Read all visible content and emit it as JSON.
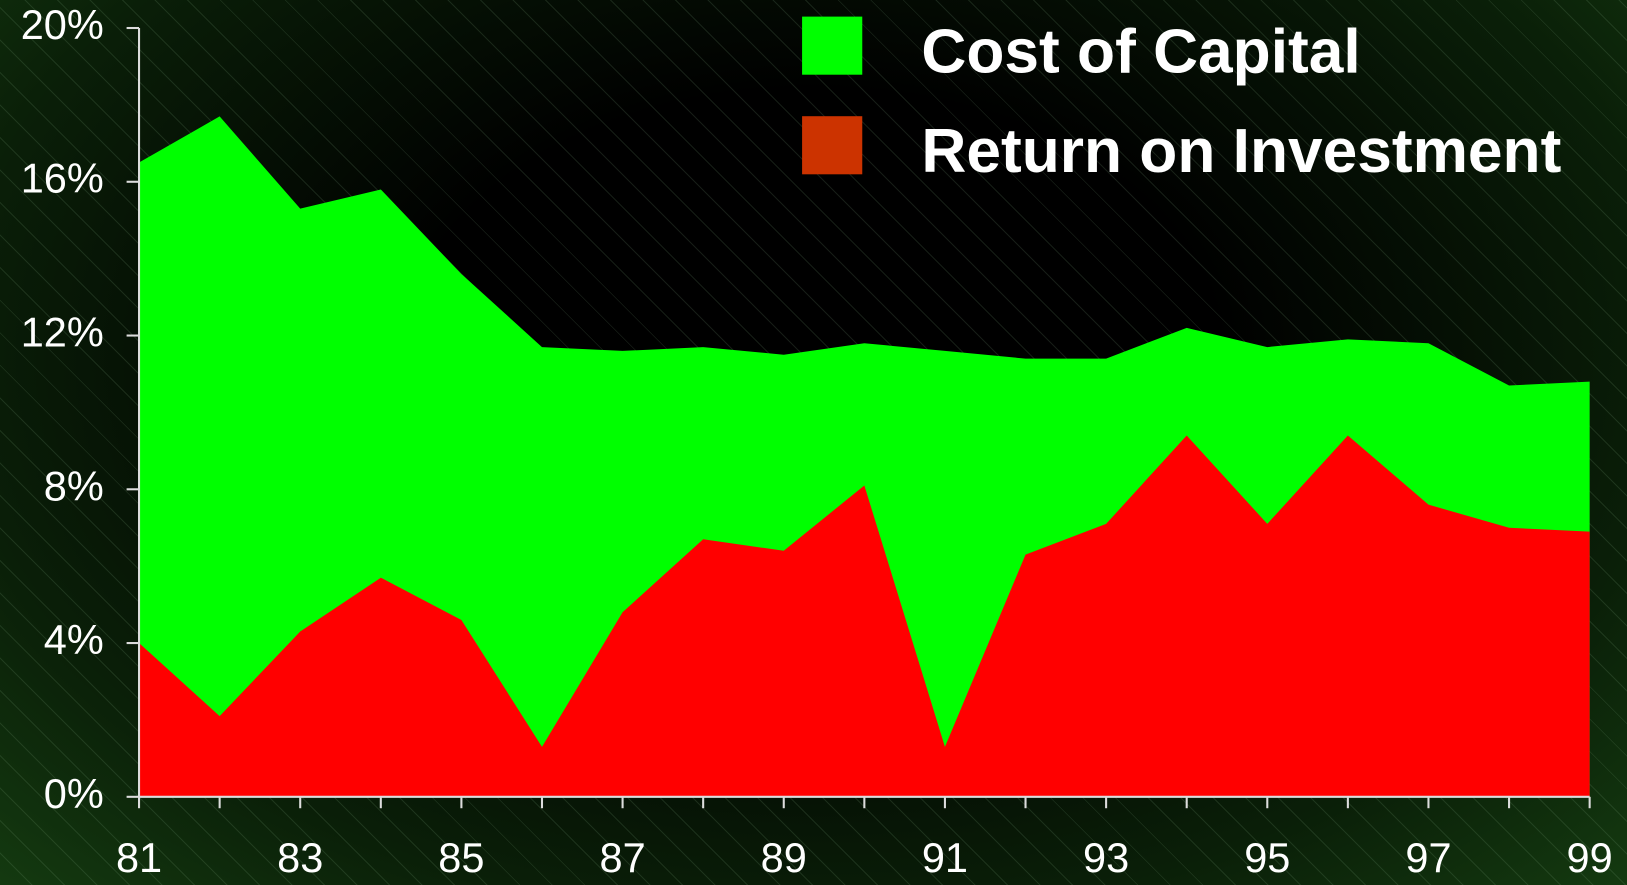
{
  "chart_data": {
    "type": "area",
    "categories": [
      "81",
      null,
      "83",
      null,
      "85",
      null,
      "87",
      null,
      "89",
      null,
      "91",
      null,
      "93",
      null,
      "95",
      null,
      "97",
      null,
      "99"
    ],
    "series": [
      {
        "name": "Cost of Capital",
        "color": "#00ff00",
        "legend_color": "#00ff00",
        "values": [
          16.5,
          17.7,
          15.3,
          15.8,
          13.6,
          11.7,
          11.6,
          11.7,
          11.5,
          11.8,
          11.6,
          11.4,
          11.4,
          12.2,
          11.7,
          11.9,
          11.8,
          10.7,
          10.8
        ]
      },
      {
        "name": "Return on Investment",
        "color": "#ff0000",
        "legend_color": "#cc3300",
        "values": [
          4.0,
          2.1,
          4.3,
          5.7,
          4.6,
          1.3,
          4.8,
          6.7,
          6.4,
          8.1,
          1.3,
          6.3,
          7.1,
          9.4,
          7.1,
          9.4,
          7.6,
          7.0,
          6.9
        ]
      }
    ],
    "ylim": [
      0,
      20
    ],
    "yticks": [
      {
        "value": 0,
        "label": "0%"
      },
      {
        "value": 4,
        "label": "4%"
      },
      {
        "value": 8,
        "label": "8%"
      },
      {
        "value": 12,
        "label": "12%"
      },
      {
        "value": 16,
        "label": "16%"
      },
      {
        "value": 20,
        "label": "20%"
      }
    ],
    "legend": "top-right"
  }
}
